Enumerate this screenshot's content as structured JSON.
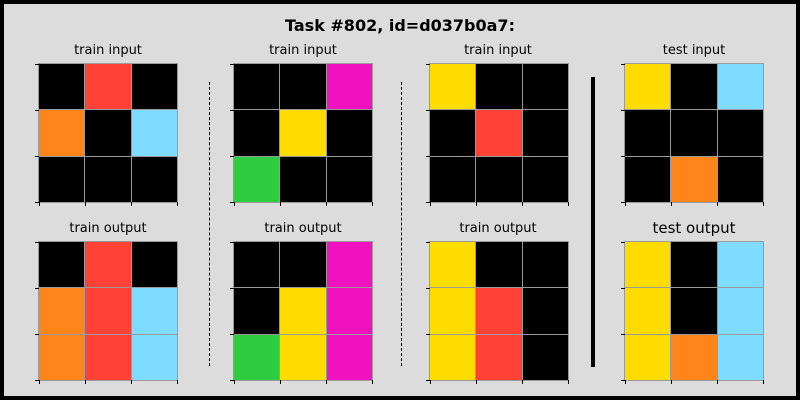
{
  "title": "Task #802, id=d037b0a7:",
  "colors": {
    "0": "#000000",
    "2": "#ff4136",
    "3": "#2ecc40",
    "4": "#ffdc00",
    "6": "#f012be",
    "7": "#ff851b",
    "8": "#7fdbff"
  },
  "panels": [
    {
      "label": "train input",
      "grid": [
        [
          0,
          2,
          0
        ],
        [
          7,
          0,
          8
        ],
        [
          0,
          0,
          0
        ]
      ]
    },
    {
      "label": "train input",
      "grid": [
        [
          0,
          0,
          6
        ],
        [
          0,
          4,
          0
        ],
        [
          3,
          0,
          0
        ]
      ]
    },
    {
      "label": "train input",
      "grid": [
        [
          4,
          0,
          0
        ],
        [
          0,
          2,
          0
        ],
        [
          0,
          0,
          0
        ]
      ]
    },
    {
      "label": "test input",
      "grid": [
        [
          4,
          0,
          8
        ],
        [
          0,
          0,
          0
        ],
        [
          0,
          7,
          0
        ]
      ]
    },
    {
      "label": "train output",
      "grid": [
        [
          0,
          2,
          0
        ],
        [
          7,
          2,
          8
        ],
        [
          7,
          2,
          8
        ]
      ]
    },
    {
      "label": "train output",
      "grid": [
        [
          0,
          0,
          6
        ],
        [
          0,
          4,
          6
        ],
        [
          3,
          4,
          6
        ]
      ]
    },
    {
      "label": "train output",
      "grid": [
        [
          4,
          0,
          0
        ],
        [
          4,
          2,
          0
        ],
        [
          4,
          2,
          0
        ]
      ]
    },
    {
      "label": "test output",
      "grid": [
        [
          4,
          0,
          8
        ],
        [
          4,
          0,
          8
        ],
        [
          4,
          7,
          8
        ]
      ]
    }
  ]
}
